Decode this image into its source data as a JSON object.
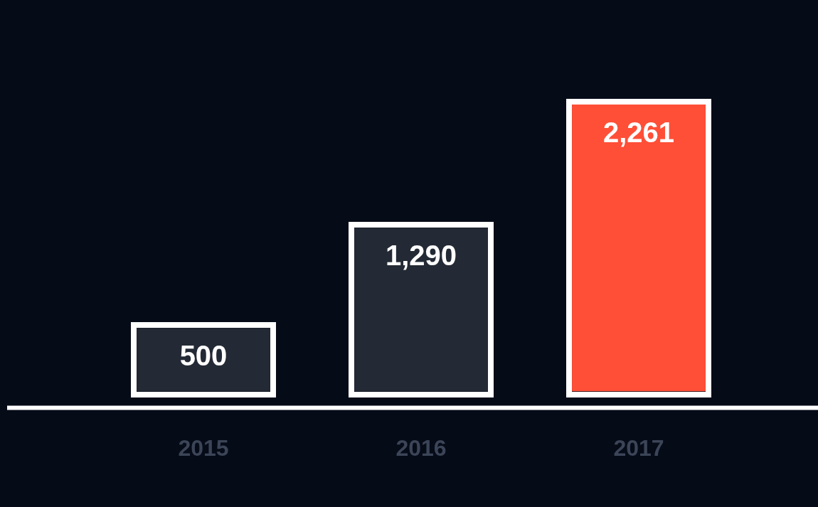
{
  "chart_data": {
    "type": "bar",
    "categories": [
      "2015",
      "2016",
      "2017"
    ],
    "values": [
      500,
      1290,
      2261
    ],
    "value_labels": [
      "500",
      "1,290",
      "2,261"
    ],
    "colors": [
      "#232a35",
      "#232a35",
      "#ff4f37"
    ],
    "legend": false,
    "tick_labels": "x"
  }
}
